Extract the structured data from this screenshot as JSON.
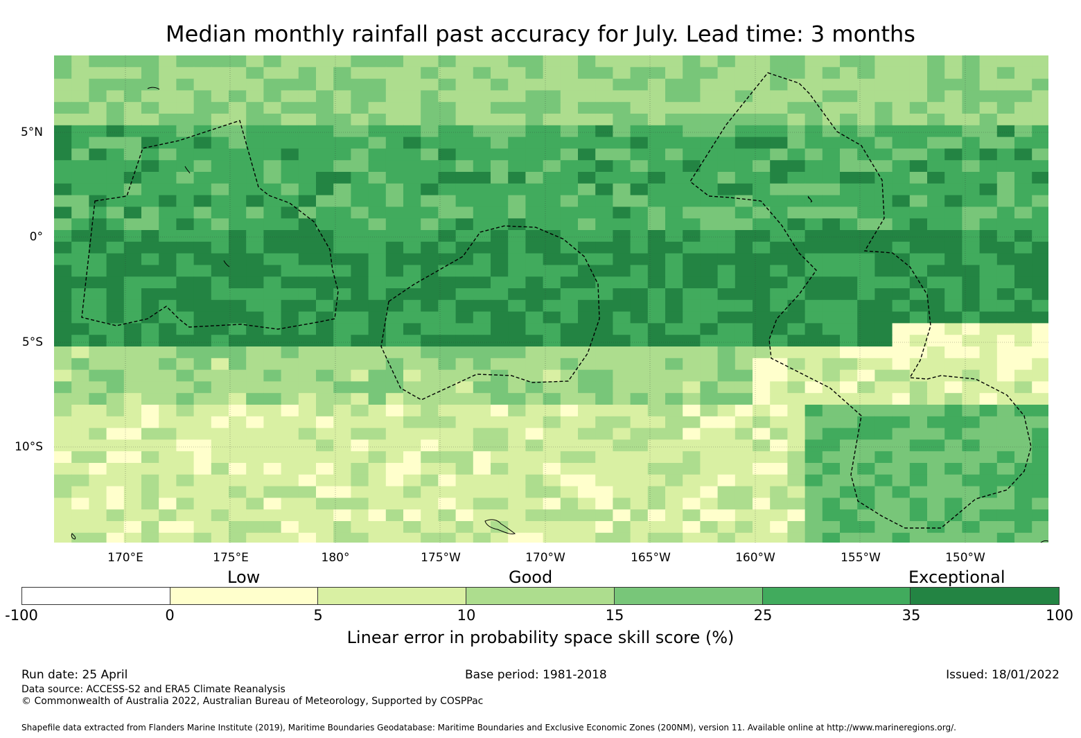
{
  "title": "Median monthly rainfall past accuracy for July. Lead time: 3 months",
  "map": {
    "lat_labels": [
      "5°N",
      "0°",
      "5°S",
      "10°S"
    ],
    "lon_labels": [
      "170°E",
      "175°E",
      "180°",
      "175°W",
      "170°W",
      "165°W",
      "160°W",
      "155°W",
      "150°W"
    ],
    "grid_lines": true,
    "eez_boundary_style": "dashed"
  },
  "legend": {
    "categories": [
      "Low",
      "Good",
      "Exceptional"
    ],
    "tick_labels": [
      "-100",
      "0",
      "5",
      "10",
      "15",
      "25",
      "35",
      "100"
    ],
    "colors": [
      "#ffffff",
      "#ffffcc",
      "#d9f0a3",
      "#addd8e",
      "#78c679",
      "#41ab5d",
      "#238443"
    ],
    "axis_label": "Linear error in probability space skill score (%)"
  },
  "footer": {
    "run_date": "Run date: 25 April",
    "base_period": "Base period: 1981-2018",
    "issued": "Issued: 18/01/2022",
    "data_source": "Data source: ACCESS-S2 and ERA5 Climate Reanalysis",
    "copyright": "© Commonwealth of Australia 2022, Australian Bureau of Meteorology, Supported by COSPPac",
    "shapefile_note": "Shapefile data extracted from Flanders Marine Institute (2019), Maritime Boundaries Geodatabase: Maritime Boundaries and Exclusive Economic Zones (200NM), version 11. Available online at http://www.marineregions.org/."
  }
}
